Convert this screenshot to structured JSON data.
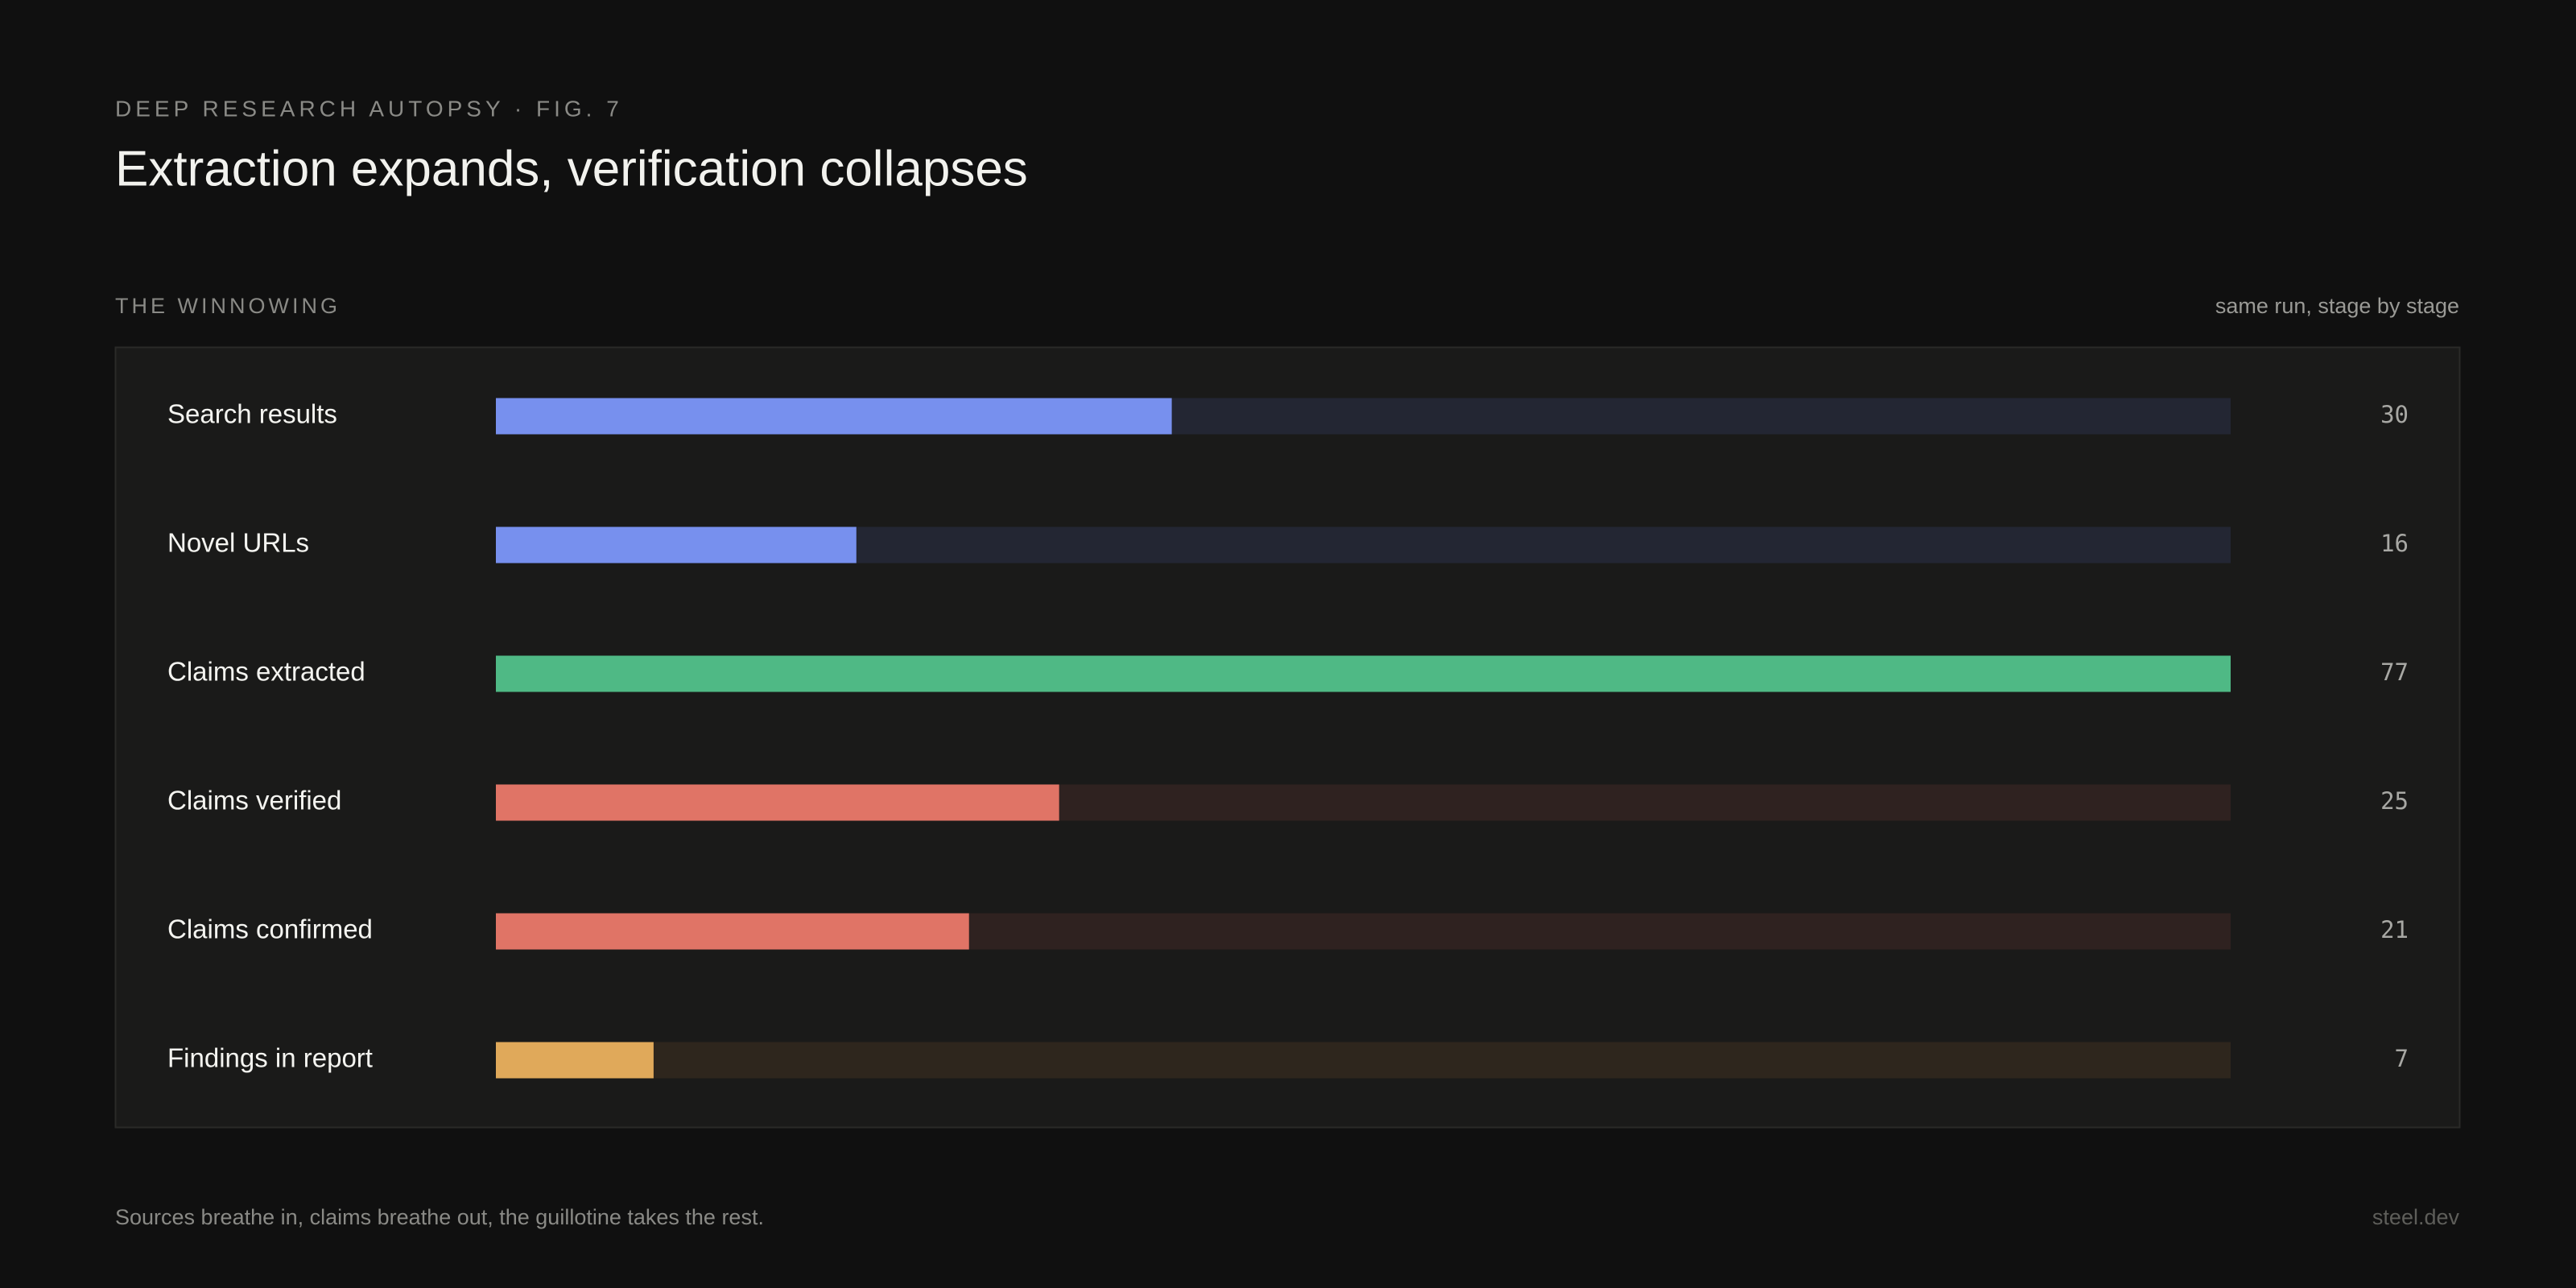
{
  "chart_data": {
    "type": "hbar",
    "kicker": "DEEP RESEARCH AUTOPSY · FIG. 7",
    "title": "Extraction expands, verification collapses",
    "section_label": "THE WINNOWING",
    "subtitle": "same run, stage by stage",
    "footer": "Sources breathe in, claims breathe out, the guillotine takes the rest.",
    "brand": "steel.dev",
    "categories": [
      "Search results",
      "Novel URLs",
      "Claims extracted",
      "Claims verified",
      "Claims confirmed",
      "Findings in report"
    ],
    "values": [
      30,
      16,
      77,
      25,
      21,
      7
    ],
    "colors": [
      "#7790ee",
      "#7790ee",
      "#4fb985",
      "#e07466",
      "#e07466",
      "#e0a95a"
    ],
    "track_colors": [
      "#232633",
      "#232633",
      "#1f2d25",
      "#2f2220",
      "#2f2220",
      "#2e261d"
    ],
    "xlim": [
      0,
      77
    ]
  }
}
